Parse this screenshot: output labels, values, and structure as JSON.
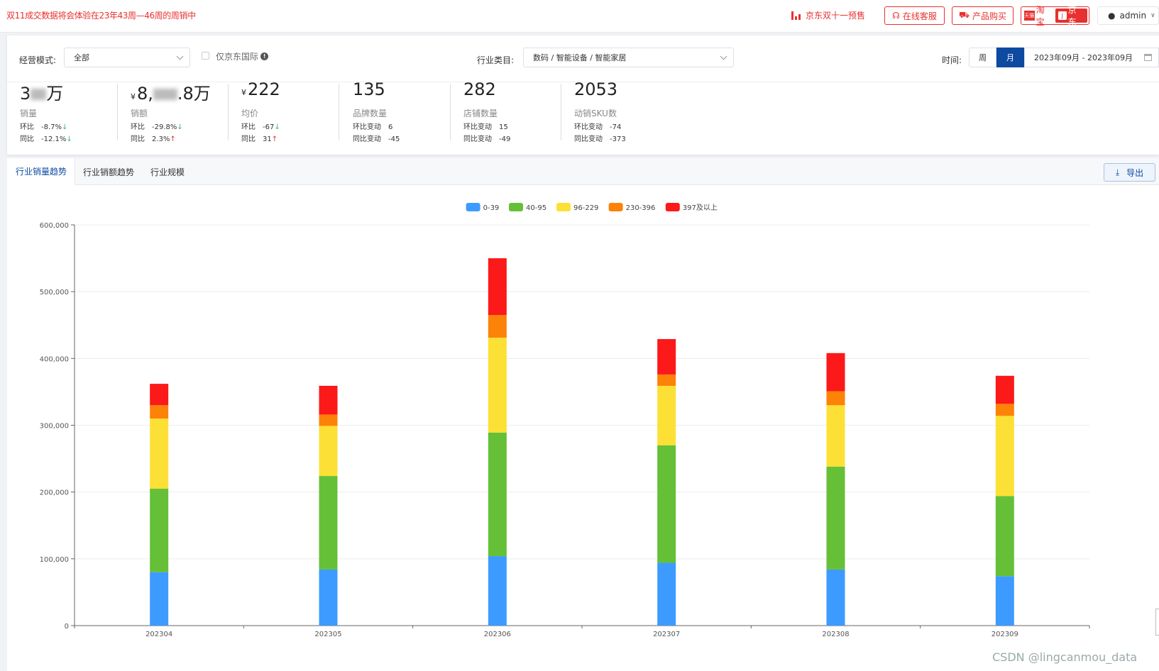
{
  "topbar": {
    "notice": "双11成交数据将会体验在23年43周—46周的周销中",
    "jd_promo": "京东双十一预售",
    "service_label": "在线客服",
    "buy_label": "产品购买",
    "platform_tb": "淘宝",
    "platform_jd": "京东",
    "user": "admin"
  },
  "filters": {
    "mode_label": "经营模式:",
    "mode_value": "全部",
    "jd_intl_label": "仅京东国际",
    "category_label": "行业类目:",
    "category_value": "数码 / 智能设备 / 智能家居",
    "time_label": "时间:",
    "week": "周",
    "month": "月",
    "date_range": "2023年09月 - 2023年09月"
  },
  "metrics": [
    {
      "value_prefix": "3",
      "value_suffix": "万",
      "currency": "",
      "name": "销量",
      "l1_label": "环比",
      "l1_value": "-8.7%",
      "l1_dir": "↓",
      "l2_label": "同比",
      "l2_value": "-12.1%",
      "l2_dir": "↓"
    },
    {
      "value_prefix": "8,",
      "value_suffix": ".8万",
      "currency": "¥",
      "name": "销额",
      "l1_label": "环比",
      "l1_value": "-29.8%",
      "l1_dir": "↓",
      "l2_label": "同比",
      "l2_value": "2.3%",
      "l2_dir": "↑"
    },
    {
      "value_prefix": "222",
      "value_suffix": "",
      "currency": "¥",
      "name": "均价",
      "l1_label": "环比",
      "l1_value": "-67",
      "l1_dir": "↓",
      "l2_label": "同比",
      "l2_value": "31",
      "l2_dir": "↑"
    },
    {
      "value_prefix": "135",
      "value_suffix": "",
      "currency": "",
      "name": "品牌数量",
      "l1_label": "环比变动",
      "l1_value": "6",
      "l1_dir": "",
      "l2_label": "同比变动",
      "l2_value": "-45",
      "l2_dir": ""
    },
    {
      "value_prefix": "282",
      "value_suffix": "",
      "currency": "",
      "name": "店铺数量",
      "l1_label": "环比变动",
      "l1_value": "15",
      "l1_dir": "",
      "l2_label": "同比变动",
      "l2_value": "-49",
      "l2_dir": ""
    },
    {
      "value_prefix": "2053",
      "value_suffix": "",
      "currency": "",
      "name": "动销SKU数",
      "l1_label": "环比变动",
      "l1_value": "-74",
      "l1_dir": "",
      "l2_label": "同比变动",
      "l2_value": "-373",
      "l2_dir": ""
    }
  ],
  "tabs": [
    "行业销量趋势",
    "行业销额趋势",
    "行业规模"
  ],
  "export_label": "导出",
  "watermark": "CSDN @lingcanmou_data",
  "chart_data": {
    "type": "bar",
    "stacked": true,
    "categories": [
      "202304",
      "202305",
      "202306",
      "202307",
      "202308",
      "202309"
    ],
    "series": [
      {
        "name": "0-39",
        "color": "#3d9bff",
        "values": [
          80000,
          84000,
          104000,
          94000,
          84000,
          74000
        ]
      },
      {
        "name": "40-95",
        "color": "#65c038",
        "values": [
          125000,
          140000,
          185000,
          176000,
          154000,
          120000
        ]
      },
      {
        "name": "96-229",
        "color": "#fde035",
        "values": [
          105000,
          75000,
          142000,
          89000,
          92000,
          120000
        ]
      },
      {
        "name": "230-396",
        "color": "#fd8208",
        "values": [
          20000,
          17000,
          34000,
          17000,
          21000,
          18000
        ]
      },
      {
        "name": "397及以上",
        "color": "#fc1919",
        "values": [
          32000,
          43000,
          85000,
          53000,
          57000,
          42000
        ]
      }
    ],
    "ylim": [
      0,
      600000
    ],
    "yticks": [
      "0",
      "100,000",
      "200,000",
      "300,000",
      "400,000",
      "500,000",
      "600,000"
    ],
    "legend_position": "top-center",
    "grid": true
  }
}
